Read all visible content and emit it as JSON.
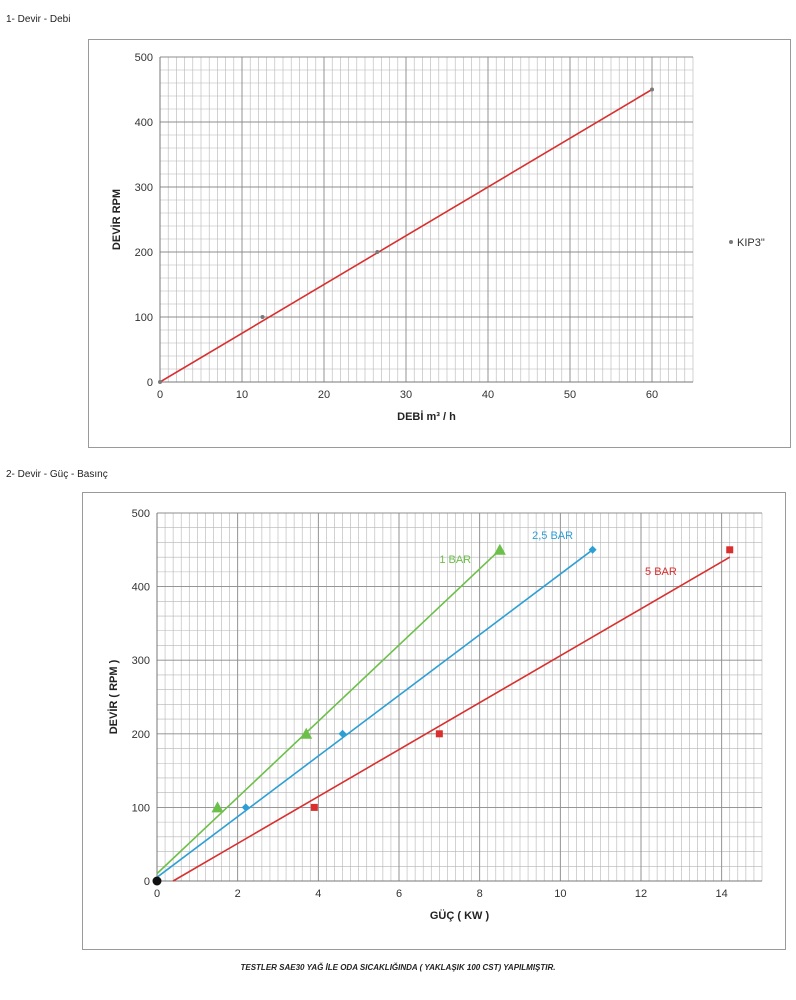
{
  "titles": {
    "section1": "1- Devir - Debi",
    "section2": "2- Devir - Güç - Basınç"
  },
  "footnote": "TESTLER SAE30 YAĞ İLE ODA SICAKLIĞINDA ( YAKLAŞIK 100 CST) YAPILMIŞTIR.",
  "colors": {
    "red": "#d9302f",
    "blue": "#2e9fd6",
    "green": "#6cc04a",
    "grid": "#b5b5b5",
    "point_grey": "#7a7a7a"
  },
  "chart_data": [
    {
      "type": "scatter",
      "title": "",
      "xlabel": "DEBİ m³ / h",
      "ylabel": "DEVİR RPM",
      "xlim": [
        0,
        65
      ],
      "ylim": [
        0,
        500
      ],
      "xticks": [
        "0",
        "10",
        "20",
        "30",
        "40",
        "50",
        "60"
      ],
      "yticks": [
        "0",
        "100",
        "200",
        "300",
        "400",
        "500"
      ],
      "grid": true,
      "legend": "right",
      "series": [
        {
          "name": "KIP3\"",
          "points": [
            [
              0,
              0
            ],
            [
              12.5,
              100
            ],
            [
              26.5,
              200
            ],
            [
              60,
              450
            ]
          ],
          "trendline": [
            [
              0,
              0
            ],
            [
              60,
              450
            ]
          ]
        }
      ]
    },
    {
      "type": "scatter",
      "title": "",
      "xlabel": "GÜÇ ( KW )",
      "ylabel": "DEVİR ( RPM )",
      "xlim": [
        0,
        15
      ],
      "ylim": [
        0,
        500
      ],
      "xticks": [
        "0",
        "2",
        "4",
        "6",
        "8",
        "10",
        "12",
        "14"
      ],
      "yticks": [
        "0",
        "100",
        "200",
        "300",
        "400",
        "500"
      ],
      "grid": true,
      "legend": "none",
      "series": [
        {
          "name": "1 BAR",
          "marker": "triangle",
          "points": [
            [
              0,
              0
            ],
            [
              1.5,
              100
            ],
            [
              3.7,
              200
            ],
            [
              8.5,
              450
            ]
          ],
          "trendline": [
            [
              0,
              10
            ],
            [
              8.5,
              450
            ]
          ]
        },
        {
          "name": "2,5 BAR",
          "marker": "diamond",
          "points": [
            [
              0,
              0
            ],
            [
              2.2,
              100
            ],
            [
              4.6,
              200
            ],
            [
              10.8,
              450
            ]
          ],
          "trendline": [
            [
              0,
              5
            ],
            [
              10.8,
              450
            ]
          ]
        },
        {
          "name": "5 BAR",
          "marker": "square",
          "points": [
            [
              0,
              0
            ],
            [
              3.9,
              100
            ],
            [
              7,
              200
            ],
            [
              14.2,
              450
            ]
          ],
          "trendline": [
            [
              0.4,
              0
            ],
            [
              14.2,
              440
            ]
          ]
        }
      ]
    }
  ]
}
